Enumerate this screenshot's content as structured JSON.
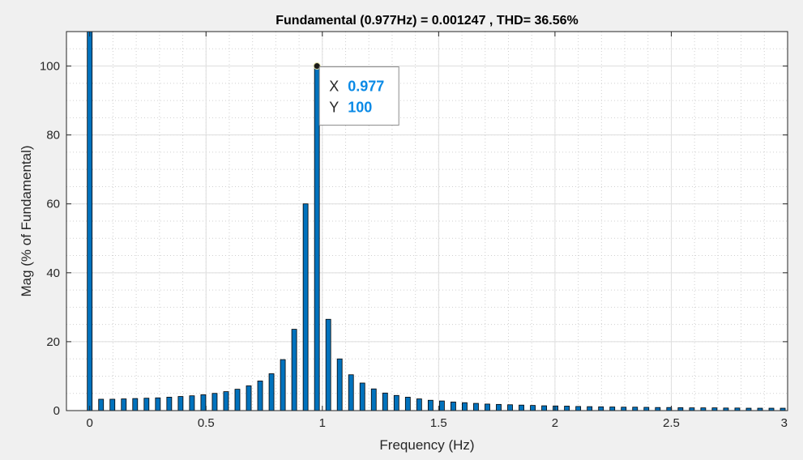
{
  "chart_data": {
    "type": "bar",
    "title": "Fundamental (0.977Hz) = 0.001247 , THD= 36.56%",
    "xlabel": "Frequency (Hz)",
    "ylabel": "Mag (% of Fundamental)",
    "xlim": [
      -0.1,
      3.0
    ],
    "ylim": [
      0,
      110
    ],
    "xticks": [
      0,
      0.5,
      1,
      1.5,
      2,
      2.5,
      3
    ],
    "xtick_labels": [
      "0",
      "0.5",
      "1",
      "1.5",
      "2",
      "2.5",
      "3"
    ],
    "yticks": [
      0,
      20,
      40,
      60,
      80,
      100
    ],
    "ytick_labels": [
      "0",
      "20",
      "40",
      "60",
      "80",
      "100"
    ],
    "grid": true,
    "minor_grid": true,
    "bar_color": "#0072bd",
    "bar_edge_color": "#000000",
    "x_step": 0.04884,
    "values": [
      110,
      3.3,
      3.3,
      3.4,
      3.5,
      3.6,
      3.7,
      3.9,
      4.1,
      4.3,
      4.6,
      5.0,
      5.5,
      6.2,
      7.2,
      8.6,
      10.7,
      14.8,
      23.6,
      60,
      100,
      26.5,
      15,
      10.4,
      8.0,
      6.3,
      5.1,
      4.4,
      3.9,
      3.4,
      3.0,
      2.8,
      2.5,
      2.3,
      2.1,
      1.9,
      1.8,
      1.7,
      1.6,
      1.5,
      1.4,
      1.35,
      1.3,
      1.2,
      1.15,
      1.1,
      1.05,
      1.0,
      1.0,
      0.95,
      0.9,
      0.9,
      0.85,
      0.8,
      0.8,
      0.8,
      0.75,
      0.75,
      0.7,
      0.7,
      0.7,
      0.7
    ],
    "datatip": {
      "x_key": "X",
      "x_value": "0.977",
      "y_key": "Y",
      "y_value": "100",
      "x": 0.977,
      "y": 100
    }
  }
}
